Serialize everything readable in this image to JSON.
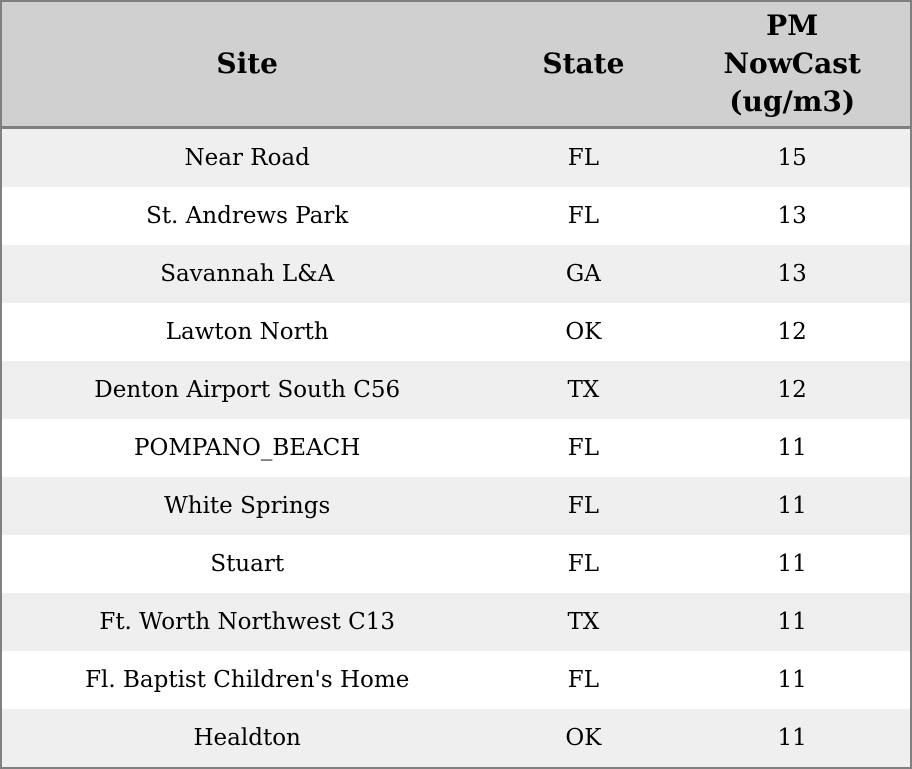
{
  "chart_data": {
    "type": "table",
    "columns": [
      "Site",
      "State",
      "PM NowCast (ug/m3)"
    ],
    "rows": [
      {
        "site": "Near Road",
        "state": "FL",
        "pm_nowcast": "15"
      },
      {
        "site": "St. Andrews Park",
        "state": "FL",
        "pm_nowcast": "13"
      },
      {
        "site": "Savannah L&A",
        "state": "GA",
        "pm_nowcast": "13"
      },
      {
        "site": "Lawton North",
        "state": "OK",
        "pm_nowcast": "12"
      },
      {
        "site": "Denton Airport South C56",
        "state": "TX",
        "pm_nowcast": "12"
      },
      {
        "site": "POMPANO_BEACH",
        "state": "FL",
        "pm_nowcast": "11"
      },
      {
        "site": "White Springs",
        "state": "FL",
        "pm_nowcast": "11"
      },
      {
        "site": "Stuart",
        "state": "FL",
        "pm_nowcast": "11"
      },
      {
        "site": "Ft. Worth Northwest C13",
        "state": "TX",
        "pm_nowcast": "11"
      },
      {
        "site": "Fl. Baptist Children's Home",
        "state": "FL",
        "pm_nowcast": "11"
      },
      {
        "site": "Healdton",
        "state": "OK",
        "pm_nowcast": "11"
      }
    ]
  },
  "header": {
    "site": "Site",
    "state": "State",
    "pm_nowcast": "PM\nNowCast\n(ug/m3)"
  },
  "colors": {
    "header_bg": "#d0d0d0",
    "row_alt_bg": "#efefef",
    "row_bg": "#ffffff",
    "border": "#808080",
    "text": "#000000"
  }
}
